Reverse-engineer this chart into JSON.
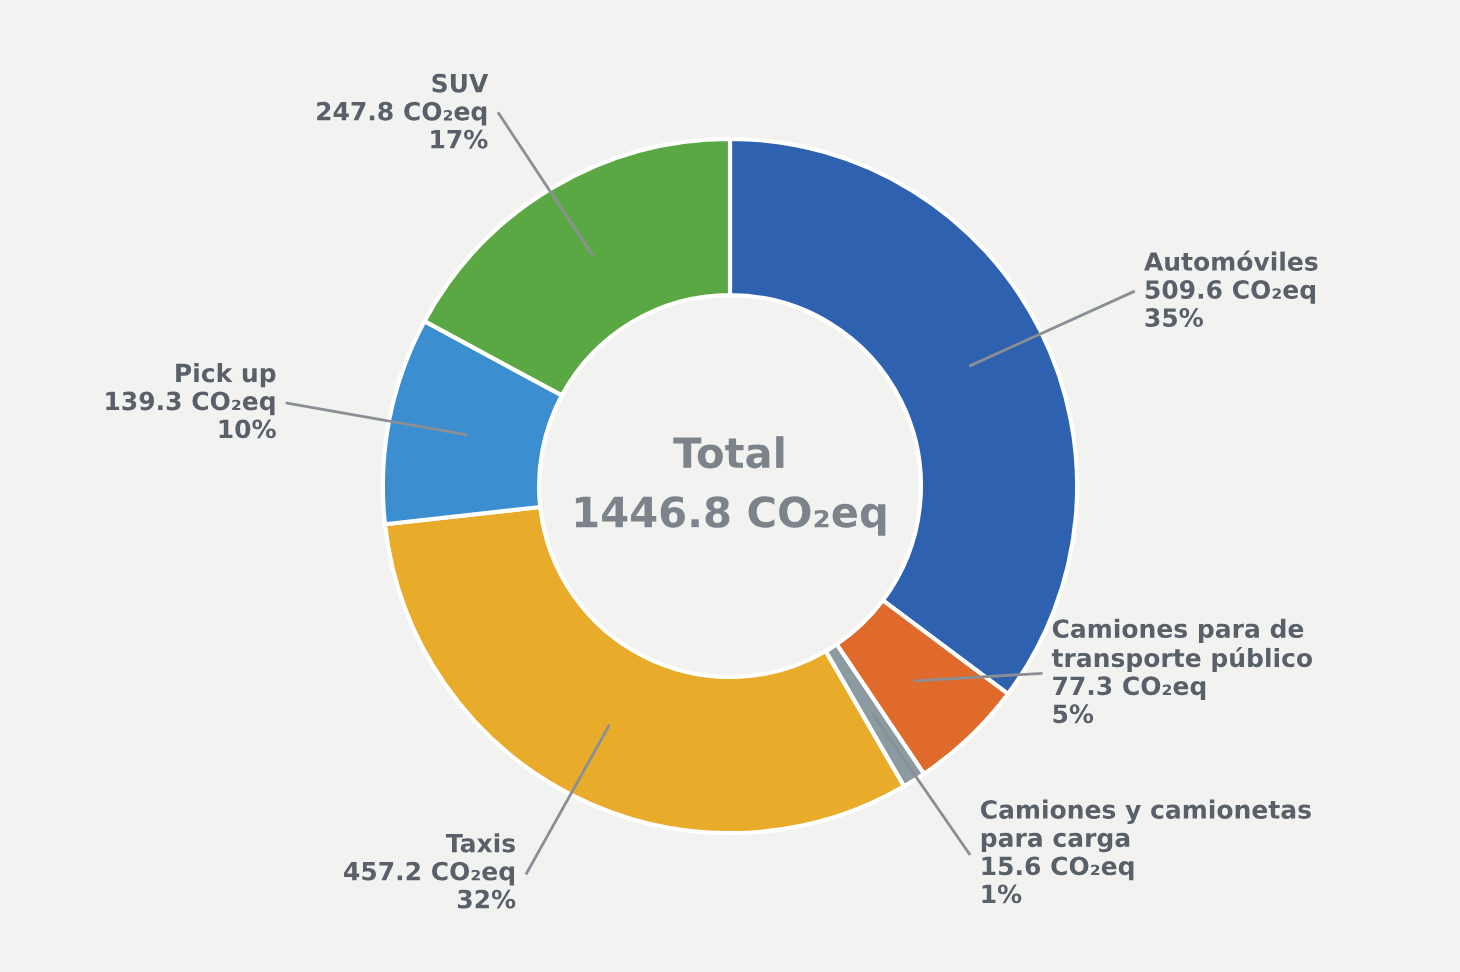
{
  "chart_data": {
    "type": "donut",
    "categories": [
      "Automóviles",
      "Camiones para de transporte público",
      "Camiones y camionetas para carga",
      "Taxis",
      "Pick up",
      "SUV"
    ],
    "values": [
      509.6,
      77.3,
      15.6,
      457.2,
      139.3,
      247.8
    ],
    "value_labels": [
      "509.6 CO₂eq\n35%",
      "77.3 CO₂eq\n5%",
      "15.6 CO₂eq\n1%",
      "457.2 CO₂eq\n32%",
      "139.3 CO₂eq\n10%",
      "247.8 CO₂eq\n17%"
    ],
    "colors": [
      "#2e62b0",
      "#e0692c",
      "#8c9aa2",
      "#e8ab2a",
      "#3b8fd1",
      "#5aa844"
    ],
    "annotations": [
      "Total\n1446.8 CO₂eq"
    ],
    "legend": false
  }
}
